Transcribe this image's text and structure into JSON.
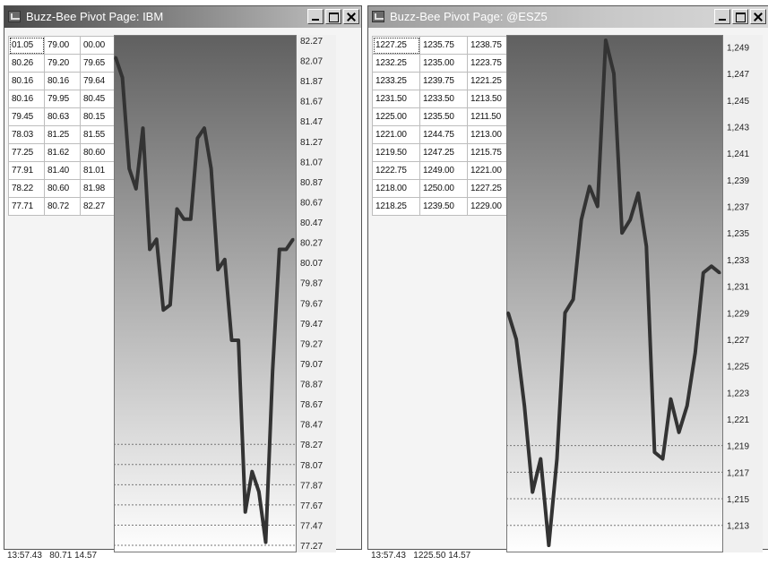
{
  "left_window": {
    "title": "Buzz-Bee Pivot Page: IBM",
    "table": [
      [
        "01.05",
        "79.00",
        "00.00"
      ],
      [
        "80.26",
        "79.20",
        "79.65"
      ],
      [
        "80.16",
        "80.16",
        "79.64"
      ],
      [
        "80.16",
        "79.95",
        "80.45"
      ],
      [
        "79.45",
        "80.63",
        "80.15"
      ],
      [
        "78.03",
        "81.25",
        "81.55"
      ],
      [
        "77.25",
        "81.62",
        "80.60"
      ],
      [
        "77.91",
        "81.40",
        "81.01"
      ],
      [
        "78.22",
        "80.60",
        "81.98"
      ],
      [
        "77.71",
        "80.72",
        "82.27"
      ]
    ],
    "status": {
      "time": "13:57.43",
      "price": "80.71",
      "extra": "14.57"
    },
    "chart_data": {
      "type": "line",
      "y_ticks": [
        "82.27",
        "82.07",
        "81.87",
        "81.67",
        "81.47",
        "81.27",
        "81.07",
        "80.87",
        "80.67",
        "80.47",
        "80.27",
        "80.07",
        "79.87",
        "79.67",
        "79.47",
        "79.27",
        "79.07",
        "78.87",
        "78.67",
        "78.47",
        "78.27",
        "78.07",
        "77.87",
        "77.67",
        "77.47",
        "77.27"
      ],
      "ylim": [
        77.27,
        82.27
      ],
      "values": [
        82.1,
        81.9,
        81.0,
        80.8,
        81.4,
        80.2,
        80.3,
        79.6,
        79.65,
        80.6,
        80.5,
        80.5,
        81.3,
        81.4,
        81.0,
        80.0,
        80.1,
        79.3,
        79.3,
        77.6,
        78.0,
        77.8,
        77.3,
        79.0,
        80.2,
        80.2,
        80.3
      ],
      "grid_from_tick": "78.27"
    }
  },
  "right_window": {
    "title": "Buzz-Bee Pivot Page: @ESZ5",
    "table": [
      [
        "1227.25",
        "1235.75",
        "1238.75"
      ],
      [
        "1232.25",
        "1235.00",
        "1223.75"
      ],
      [
        "1233.25",
        "1239.75",
        "1221.25"
      ],
      [
        "1231.50",
        "1233.50",
        "1213.50"
      ],
      [
        "1225.00",
        "1235.50",
        "1211.50"
      ],
      [
        "1221.00",
        "1244.75",
        "1213.00"
      ],
      [
        "1219.50",
        "1247.25",
        "1215.75"
      ],
      [
        "1222.75",
        "1249.00",
        "1221.00"
      ],
      [
        "1218.00",
        "1250.00",
        "1227.25"
      ],
      [
        "1218.25",
        "1239.50",
        "1229.00"
      ]
    ],
    "status": {
      "time": "13:57.43",
      "price": "1225.50",
      "extra": "14.57"
    },
    "chart_data": {
      "type": "line",
      "y_ticks": [
        "1,249",
        "1,247",
        "1,245",
        "1,243",
        "1,241",
        "1,239",
        "1,237",
        "1,235",
        "1,233",
        "1,231",
        "1,229",
        "1,227",
        "1,225",
        "1,223",
        "1,221",
        "1,219",
        "1,217",
        "1,215",
        "1,213"
      ],
      "ylim": [
        1211.5,
        1249.5
      ],
      "values": [
        1229.0,
        1227.0,
        1222.0,
        1215.5,
        1218.0,
        1211.5,
        1218.0,
        1229.0,
        1230.0,
        1236.0,
        1238.5,
        1237.0,
        1249.5,
        1247.0,
        1235.0,
        1236.0,
        1238.0,
        1234.0,
        1218.5,
        1218.0,
        1222.5,
        1220.0,
        1222.0,
        1226.0,
        1232.0,
        1232.5,
        1232.0
      ],
      "grid_from_tick": "1,219"
    }
  },
  "colors": {
    "plot_bg_top": "#606060",
    "plot_bg_bottom": "#ffffff",
    "line": "#333333",
    "title_text": "#ffffff"
  }
}
